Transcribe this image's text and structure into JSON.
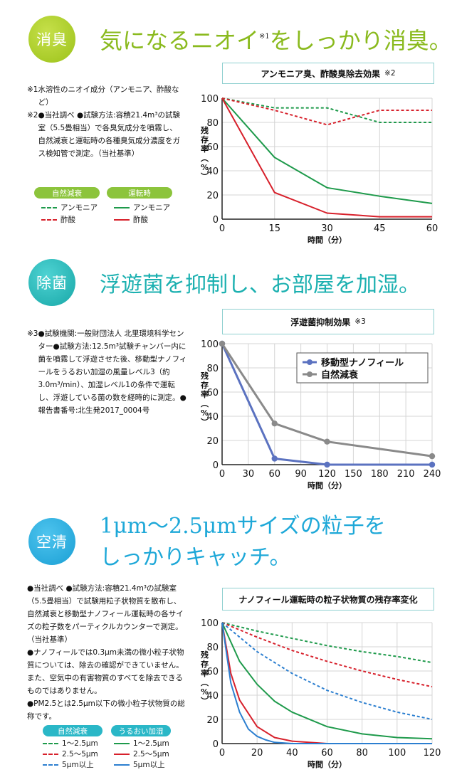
{
  "section1": {
    "badge": "消臭",
    "headline_a": "気になるニオイ",
    "headline_mark": "※1",
    "headline_b": "をしっかり消臭。",
    "notes": [
      {
        "label": "※1 ",
        "text": "水溶性のニオイ成分（アンモニア、酢酸など）"
      },
      {
        "label": "※2 ",
        "text": "●当社調べ ●試験方法:容積21.4m³の試験室（5.5畳相当）で各臭気成分を噴霧し、自然減衰と運転時の各種臭気成分濃度をガス検知管で測定。（当社基準）"
      }
    ],
    "legend_group_a": "自然減衰",
    "legend_group_b": "運転時",
    "legend_items": {
      "ammonia_natural": "アンモニア",
      "acetic_natural": "酢酸",
      "ammonia_run": "アンモニア",
      "acetic_run": "酢酸"
    }
  },
  "section2": {
    "badge": "除菌",
    "headline": "浮遊菌を抑制し、お部屋を加湿。",
    "notes": [
      {
        "label": "※3 ",
        "text": "●試験機関:一般財団法人 北里環境科学センター●試験方法:12.5m³試験チャンバー内に菌を噴霧して浮遊させた後、移動型ナノフィールをうるおい加湿の風量レベル3（約3.0m³/min）、加湿レベル1の条件で運転し、浮遊している菌の数を経時的に測定。●報告書番号:北生発2017_0004号"
      }
    ]
  },
  "section3": {
    "badge": "空清",
    "headline_line1": "1μm〜2.5μmサイズの粒子を",
    "headline_line2": "しっかりキャッチ。",
    "notes": [
      {
        "label": "",
        "text": "●当社調べ ●試験方法:容積21.4m³の試験室（5.5畳相当）で試験用粒子状物質を散布し、自然減衰と移動型ナノフィール運転時の各サイズの粒子数をパーティクルカウンターで測定。（当社基準）"
      },
      {
        "label": "",
        "text": "●ナノフィールでは0.3μm未満の微小粒子状物質については、除去の確認ができていません。また、空気中の有害物質のすべてを除去できるものではありません。"
      },
      {
        "label": "",
        "text": "●PM2.5とは2.5μm以下の微小粒子状物質の総称です。"
      }
    ],
    "legend_group_a": "自然減衰",
    "legend_group_b": "うるおい加湿",
    "legend_items": {
      "s1_natural": "1〜2.5μm",
      "s2_natural": "2.5〜5μm",
      "s3_natural": "5μm以上",
      "s1_run": "1〜2.5μm",
      "s2_run": "2.5〜5μm",
      "s3_run": "5μm以上"
    }
  },
  "colors": {
    "green": "#1e9a4b",
    "red": "#d7202b",
    "blue": "#2c7fd0",
    "gray": "#8a8a8a",
    "periwinkle": "#5b72c0",
    "lime": "#a5c920",
    "teal": "#1bb3b3",
    "sky": "#1ea8d8",
    "legend_green": "#8cc43c",
    "legend_cyan": "#2ab7c7"
  },
  "chart_data": [
    {
      "type": "line",
      "title": "アンモニア臭、酢酸臭除去効果",
      "title_ref": "※2",
      "xlabel": "時間（分）",
      "ylabel": "残存率（%）",
      "xlim": [
        0,
        60
      ],
      "ylim": [
        0,
        100
      ],
      "xticks": [
        0,
        15,
        30,
        45,
        60
      ],
      "yticks": [
        0,
        20,
        40,
        60,
        80,
        100
      ],
      "grid": true,
      "series": [
        {
          "name": "アンモニア（自然減衰）",
          "color": "green",
          "dashed": true,
          "x": [
            0,
            15,
            30,
            45,
            60
          ],
          "y": [
            100,
            92,
            92,
            80,
            80
          ]
        },
        {
          "name": "酢酸（自然減衰）",
          "color": "red",
          "dashed": true,
          "x": [
            0,
            15,
            30,
            45,
            60
          ],
          "y": [
            100,
            90,
            78,
            90,
            90
          ]
        },
        {
          "name": "アンモニア（運転時）",
          "color": "green",
          "dashed": false,
          "x": [
            0,
            15,
            30,
            45,
            60
          ],
          "y": [
            100,
            51,
            26,
            19,
            13
          ]
        },
        {
          "name": "酢酸（運転時）",
          "color": "red",
          "dashed": false,
          "x": [
            0,
            15,
            30,
            45,
            60
          ],
          "y": [
            100,
            22,
            5,
            2,
            2
          ]
        }
      ]
    },
    {
      "type": "line",
      "title": "浮遊菌抑制効果",
      "title_ref": "※3",
      "xlabel": "時間（分）",
      "ylabel": "残存率（%）",
      "xlim": [
        0,
        240
      ],
      "ylim": [
        0,
        100
      ],
      "xticks": [
        0,
        30,
        60,
        90,
        120,
        150,
        180,
        210,
        240
      ],
      "yticks": [
        0,
        20,
        40,
        60,
        80,
        100
      ],
      "grid": true,
      "legend": "top-right",
      "series": [
        {
          "name": "移動型ナノフィール",
          "color": "periwinkle",
          "markers": true,
          "x": [
            0,
            60,
            120,
            240
          ],
          "y": [
            100,
            5,
            0,
            0
          ]
        },
        {
          "name": "自然減衰",
          "color": "gray",
          "markers": true,
          "x": [
            0,
            60,
            120,
            240
          ],
          "y": [
            100,
            34,
            19,
            7
          ]
        }
      ]
    },
    {
      "type": "line",
      "title": "ナノフィール運転時の粒子状物質の残存率変化",
      "xlabel": "時間（分）",
      "ylabel": "残存率（%）",
      "xlim": [
        0,
        120
      ],
      "ylim": [
        0,
        100
      ],
      "xticks": [
        0,
        20,
        40,
        60,
        80,
        100,
        120
      ],
      "yticks": [
        0,
        20,
        40,
        60,
        80,
        100
      ],
      "grid": true,
      "series": [
        {
          "name": "1〜2.5μm（自然減衰）",
          "color": "green",
          "dashed": true,
          "x": [
            0,
            20,
            40,
            60,
            80,
            100,
            120
          ],
          "y": [
            100,
            93,
            87,
            81,
            76,
            72,
            67
          ]
        },
        {
          "name": "2.5〜5μm（自然減衰）",
          "color": "red",
          "dashed": true,
          "x": [
            0,
            20,
            40,
            60,
            80,
            100,
            120
          ],
          "y": [
            100,
            88,
            77,
            68,
            60,
            53,
            47
          ]
        },
        {
          "name": "5μm以上（自然減衰）",
          "color": "blue",
          "dashed": true,
          "x": [
            0,
            20,
            40,
            60,
            80,
            100,
            120
          ],
          "y": [
            100,
            76,
            58,
            44,
            34,
            26,
            20
          ]
        },
        {
          "name": "1〜2.5μm（うるおい加湿）",
          "color": "green",
          "dashed": false,
          "x": [
            0,
            10,
            20,
            30,
            40,
            60,
            80,
            100,
            120
          ],
          "y": [
            100,
            68,
            49,
            35,
            26,
            14,
            8,
            5,
            4
          ]
        },
        {
          "name": "2.5〜5μm（うるおい加湿）",
          "color": "red",
          "dashed": false,
          "x": [
            0,
            5,
            10,
            20,
            30,
            40,
            60,
            120
          ],
          "y": [
            100,
            58,
            36,
            14,
            5,
            2,
            0,
            0
          ]
        },
        {
          "name": "5μm以上（うるおい加湿）",
          "color": "blue",
          "dashed": false,
          "x": [
            0,
            5,
            10,
            15,
            20,
            25,
            30,
            40,
            120
          ],
          "y": [
            100,
            50,
            26,
            12,
            6,
            3,
            1,
            0,
            0
          ]
        }
      ]
    }
  ]
}
